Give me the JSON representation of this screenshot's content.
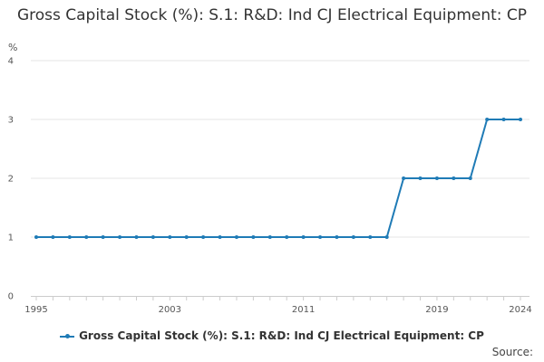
{
  "chart_data": {
    "type": "line",
    "title": "Gross Capital Stock (%): S.1: R&D: Ind CJ Electrical Equipment: CP",
    "unit_label": "%",
    "x": [
      1995,
      1996,
      1997,
      1998,
      1999,
      2000,
      2001,
      2002,
      2003,
      2004,
      2005,
      2006,
      2007,
      2008,
      2009,
      2010,
      2011,
      2012,
      2013,
      2014,
      2015,
      2016,
      2017,
      2018,
      2019,
      2020,
      2021,
      2022,
      2023,
      2024
    ],
    "x_tick_labels": [
      "1995",
      "2003",
      "2011",
      "2019",
      "2024"
    ],
    "y_tick_labels": [
      "0",
      "1",
      "2",
      "3",
      "4"
    ],
    "ylim": [
      0,
      4
    ],
    "xlim": [
      1995,
      2024
    ],
    "grid": true,
    "legend_position": "bottom",
    "series": [
      {
        "name": "Gross Capital Stock (%): S.1: R&D: Ind CJ Electrical Equipment: CP",
        "color": "#1f7bb6",
        "values": [
          1,
          1,
          1,
          1,
          1,
          1,
          1,
          1,
          1,
          1,
          1,
          1,
          1,
          1,
          1,
          1,
          1,
          1,
          1,
          1,
          1,
          1,
          2,
          2,
          2,
          2,
          2,
          3,
          3,
          3
        ]
      }
    ]
  },
  "footer": {
    "source_label": "Source:"
  }
}
